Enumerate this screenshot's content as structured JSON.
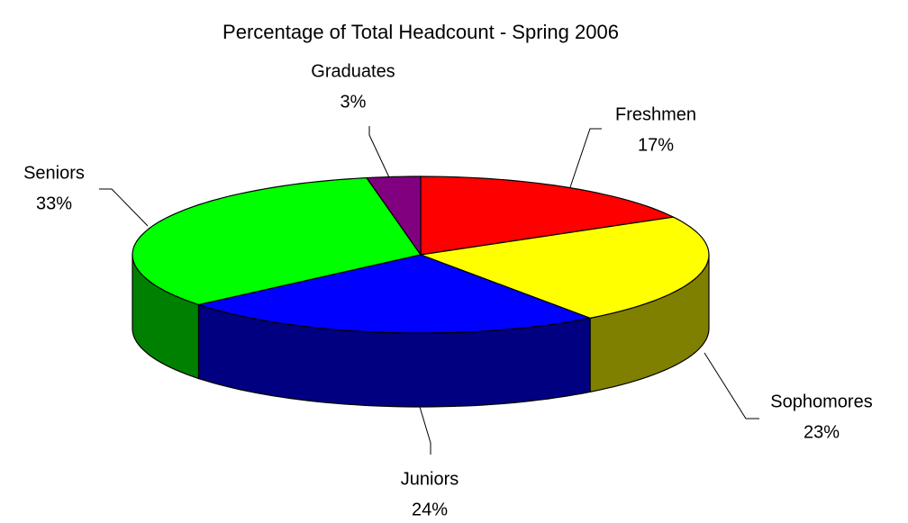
{
  "chart_data": {
    "type": "pie",
    "title": "Percentage of Total Headcount - Spring 2006",
    "categories": [
      "Freshmen",
      "Sophomores",
      "Juniors",
      "Seniors",
      "Graduates"
    ],
    "values": [
      17,
      23,
      24,
      33,
      3
    ],
    "value_labels": [
      "17%",
      "23%",
      "24%",
      "33%",
      "3%"
    ],
    "colors": [
      "#ff0000",
      "#ffff00",
      "#0000ff",
      "#00ff00",
      "#800080"
    ]
  }
}
